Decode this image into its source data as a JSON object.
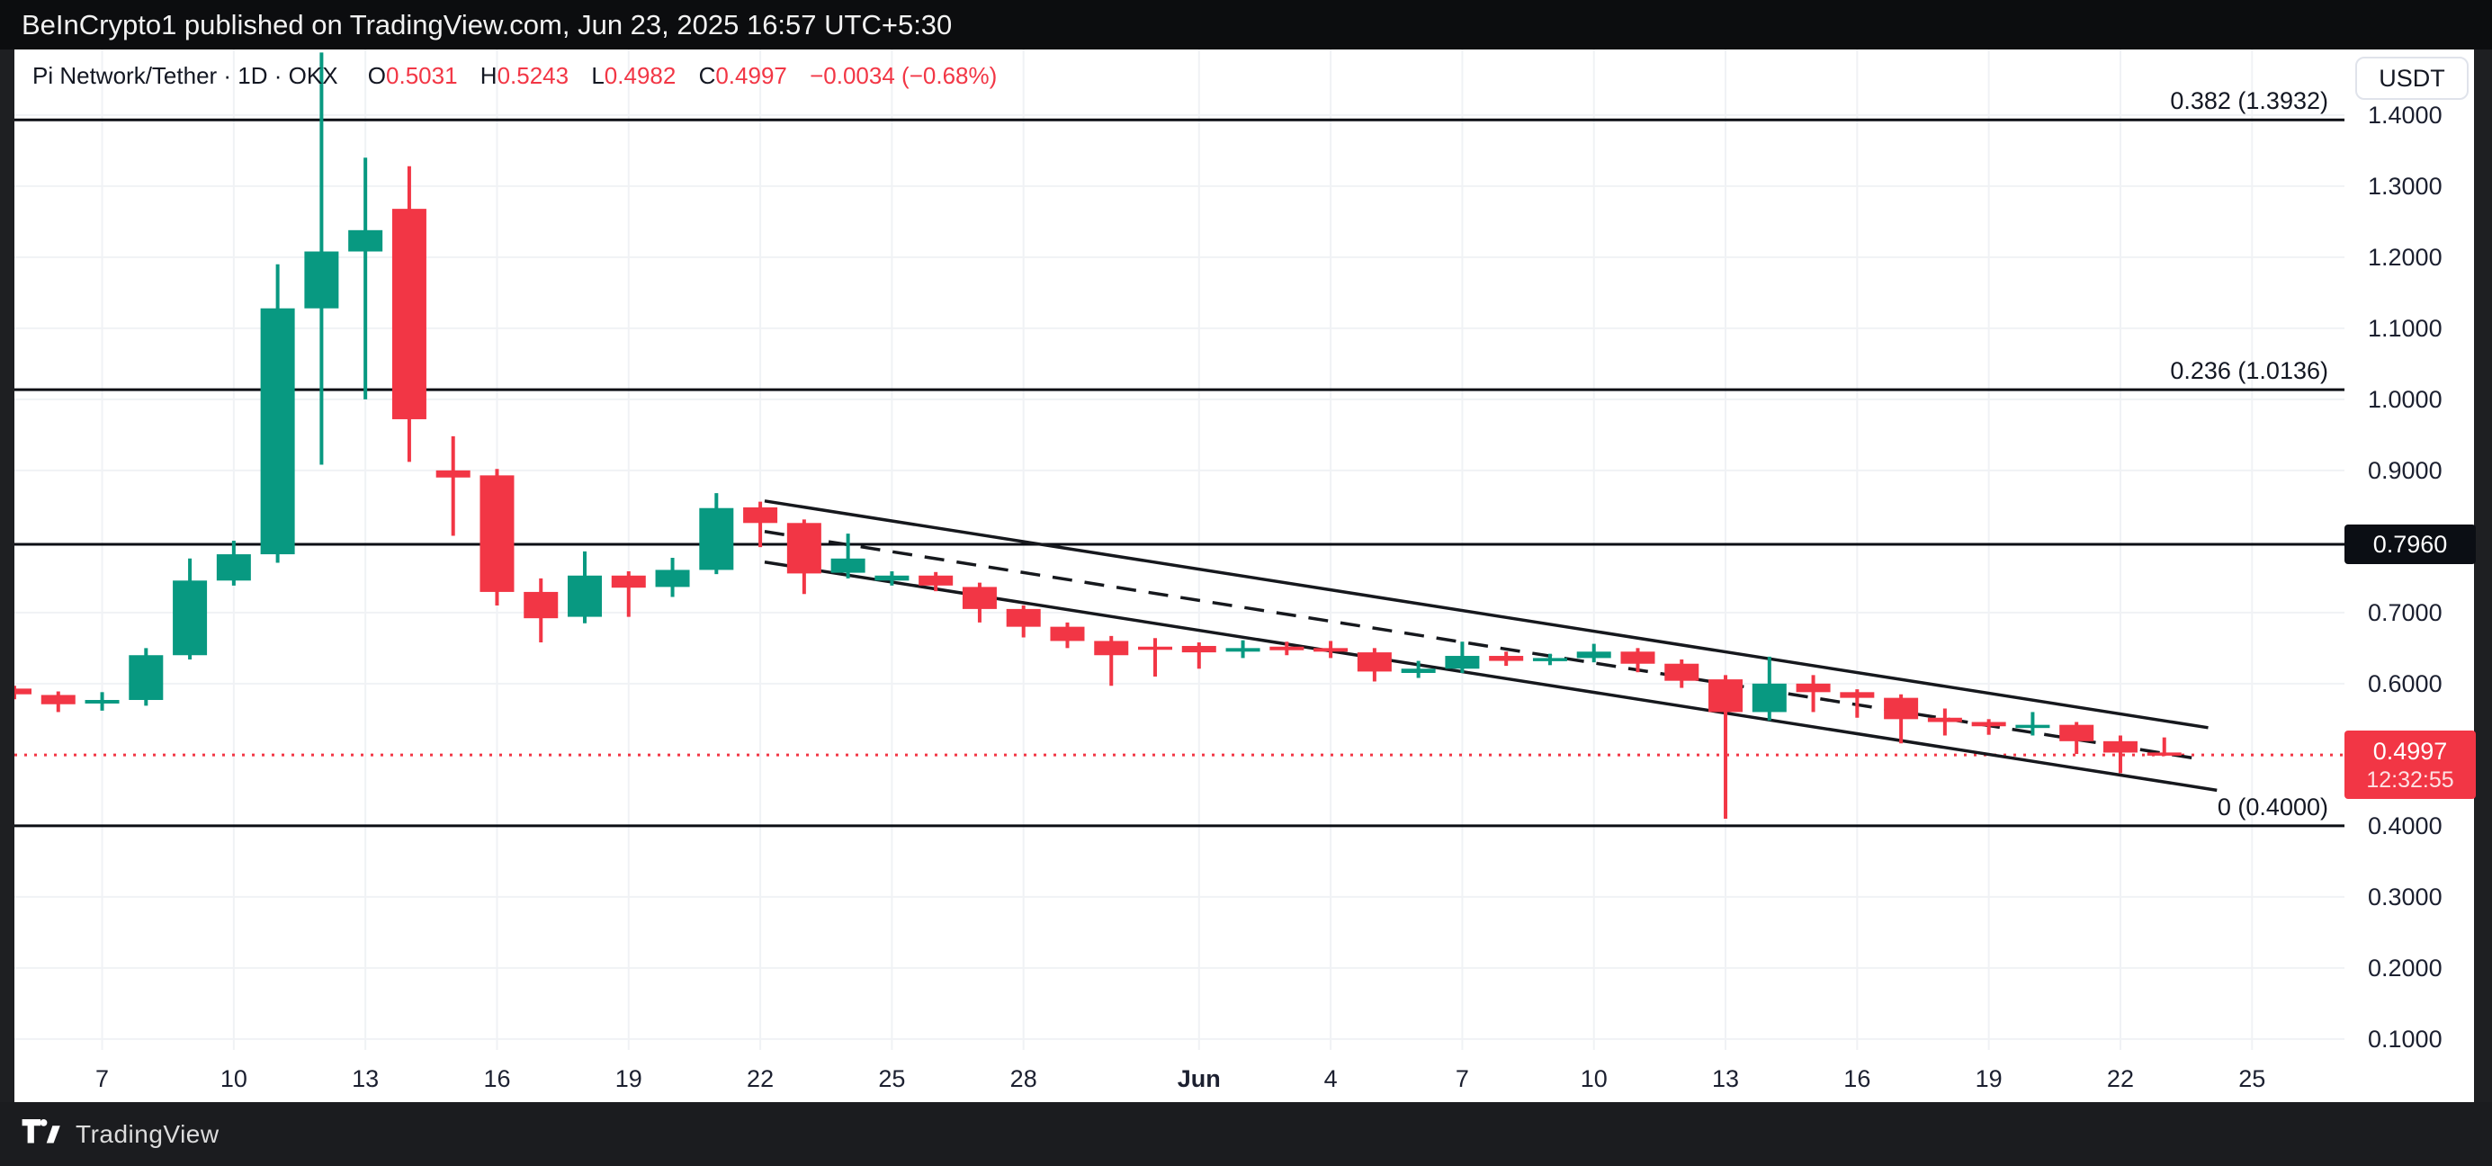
{
  "top_bar": {
    "attribution": "BeInCrypto1 published on TradingView.com, Jun 23, 2025 16:57 UTC+5:30"
  },
  "header": {
    "symbol_line": "Pi Network/Tether · 1D · OKX",
    "o_label": "O",
    "o": "0.5031",
    "h_label": "H",
    "h": "0.5243",
    "l_label": "L",
    "l": "0.4982",
    "c_label": "C",
    "c": "0.4997",
    "change": "−0.0034 (−0.68%)"
  },
  "price_axis": {
    "currency": "USDT",
    "labels": [
      {
        "text": "1.4000",
        "price": 1.4
      },
      {
        "text": "1.3000",
        "price": 1.3
      },
      {
        "text": "1.2000",
        "price": 1.2
      },
      {
        "text": "1.1000",
        "price": 1.1
      },
      {
        "text": "1.0000",
        "price": 1.0
      },
      {
        "text": "0.9000",
        "price": 0.9
      },
      {
        "text": "0.7000",
        "price": 0.7
      },
      {
        "text": "0.6000",
        "price": 0.6
      },
      {
        "text": "0.4000",
        "price": 0.4
      },
      {
        "text": "0.3000",
        "price": 0.3
      },
      {
        "text": "0.2000",
        "price": 0.2
      },
      {
        "text": "0.1000",
        "price": 0.1
      }
    ],
    "level_badge": "0.7960",
    "last_price_badge": {
      "price": "0.4997",
      "countdown": "12:32:55"
    }
  },
  "footer": {
    "brand": "TradingView"
  },
  "chart_data": {
    "type": "candlestick",
    "title": "Pi Network/Tether 1D OKX",
    "ylabel": "Price (USDT)",
    "ylim_visible": [
      0.05,
      1.47
    ],
    "grid": true,
    "x_start_date": "May 5, 2025",
    "x_ticks": [
      {
        "label": "7",
        "day": 2
      },
      {
        "label": "10",
        "day": 5
      },
      {
        "label": "13",
        "day": 8
      },
      {
        "label": "16",
        "day": 11
      },
      {
        "label": "19",
        "day": 14
      },
      {
        "label": "22",
        "day": 17
      },
      {
        "label": "25",
        "day": 20
      },
      {
        "label": "28",
        "day": 23
      },
      {
        "label": "Jun",
        "day": 27,
        "bold": true
      },
      {
        "label": "4",
        "day": 30
      },
      {
        "label": "7",
        "day": 33
      },
      {
        "label": "10",
        "day": 36
      },
      {
        "label": "13",
        "day": 39
      },
      {
        "label": "16",
        "day": 42
      },
      {
        "label": "19",
        "day": 45
      },
      {
        "label": "22",
        "day": 48
      },
      {
        "label": "25",
        "day": 51
      }
    ],
    "candles_ohlc": [
      {
        "date": "May 5",
        "o": 0.593,
        "h": 0.597,
        "l": 0.578,
        "c": 0.585
      },
      {
        "date": "May 6",
        "o": 0.584,
        "h": 0.589,
        "l": 0.56,
        "c": 0.571
      },
      {
        "date": "May 7",
        "o": 0.572,
        "h": 0.588,
        "l": 0.562,
        "c": 0.577
      },
      {
        "date": "May 8",
        "o": 0.577,
        "h": 0.65,
        "l": 0.569,
        "c": 0.64
      },
      {
        "date": "May 9",
        "o": 0.64,
        "h": 0.776,
        "l": 0.634,
        "c": 0.745
      },
      {
        "date": "May 10",
        "o": 0.745,
        "h": 0.801,
        "l": 0.738,
        "c": 0.782
      },
      {
        "date": "May 11",
        "o": 0.782,
        "h": 1.19,
        "l": 0.77,
        "c": 1.128
      },
      {
        "date": "May 12",
        "o": 1.128,
        "h": 1.488,
        "l": 0.908,
        "c": 1.208
      },
      {
        "date": "May 13",
        "o": 1.208,
        "h": 1.34,
        "l": 1.0,
        "c": 1.238
      },
      {
        "date": "May 14",
        "o": 1.268,
        "h": 1.328,
        "l": 0.912,
        "c": 0.972
      },
      {
        "date": "May 15",
        "o": 0.9,
        "h": 0.948,
        "l": 0.808,
        "c": 0.89
      },
      {
        "date": "May 16",
        "o": 0.893,
        "h": 0.902,
        "l": 0.71,
        "c": 0.729
      },
      {
        "date": "May 17",
        "o": 0.729,
        "h": 0.748,
        "l": 0.658,
        "c": 0.692
      },
      {
        "date": "May 18",
        "o": 0.694,
        "h": 0.786,
        "l": 0.685,
        "c": 0.752
      },
      {
        "date": "May 19",
        "o": 0.752,
        "h": 0.758,
        "l": 0.694,
        "c": 0.735
      },
      {
        "date": "May 20",
        "o": 0.736,
        "h": 0.777,
        "l": 0.722,
        "c": 0.76
      },
      {
        "date": "May 21",
        "o": 0.76,
        "h": 0.868,
        "l": 0.754,
        "c": 0.847
      },
      {
        "date": "May 22",
        "o": 0.848,
        "h": 0.856,
        "l": 0.792,
        "c": 0.826
      },
      {
        "date": "May 23",
        "o": 0.826,
        "h": 0.831,
        "l": 0.726,
        "c": 0.755
      },
      {
        "date": "May 24",
        "o": 0.756,
        "h": 0.811,
        "l": 0.748,
        "c": 0.776
      },
      {
        "date": "May 25",
        "o": 0.745,
        "h": 0.758,
        "l": 0.738,
        "c": 0.752
      },
      {
        "date": "May 26",
        "o": 0.752,
        "h": 0.757,
        "l": 0.73,
        "c": 0.738
      },
      {
        "date": "May 27",
        "o": 0.736,
        "h": 0.742,
        "l": 0.686,
        "c": 0.705
      },
      {
        "date": "May 28",
        "o": 0.705,
        "h": 0.71,
        "l": 0.665,
        "c": 0.68
      },
      {
        "date": "May 29",
        "o": 0.68,
        "h": 0.686,
        "l": 0.65,
        "c": 0.66
      },
      {
        "date": "May 30",
        "o": 0.66,
        "h": 0.667,
        "l": 0.597,
        "c": 0.64
      },
      {
        "date": "May 31",
        "o": 0.652,
        "h": 0.664,
        "l": 0.61,
        "c": 0.65
      },
      {
        "date": "Jun 1",
        "o": 0.653,
        "h": 0.658,
        "l": 0.621,
        "c": 0.644
      },
      {
        "date": "Jun 2",
        "o": 0.645,
        "h": 0.661,
        "l": 0.636,
        "c": 0.65
      },
      {
        "date": "Jun 3",
        "o": 0.652,
        "h": 0.659,
        "l": 0.64,
        "c": 0.647
      },
      {
        "date": "Jun 4",
        "o": 0.65,
        "h": 0.66,
        "l": 0.636,
        "c": 0.645
      },
      {
        "date": "Jun 5",
        "o": 0.644,
        "h": 0.65,
        "l": 0.603,
        "c": 0.617
      },
      {
        "date": "Jun 6",
        "o": 0.615,
        "h": 0.632,
        "l": 0.608,
        "c": 0.621
      },
      {
        "date": "Jun 7",
        "o": 0.621,
        "h": 0.659,
        "l": 0.615,
        "c": 0.639
      },
      {
        "date": "Jun 8",
        "o": 0.639,
        "h": 0.645,
        "l": 0.625,
        "c": 0.632
      },
      {
        "date": "Jun 9",
        "o": 0.632,
        "h": 0.642,
        "l": 0.626,
        "c": 0.636
      },
      {
        "date": "Jun 10",
        "o": 0.636,
        "h": 0.656,
        "l": 0.63,
        "c": 0.645
      },
      {
        "date": "Jun 11",
        "o": 0.645,
        "h": 0.65,
        "l": 0.616,
        "c": 0.628
      },
      {
        "date": "Jun 12",
        "o": 0.628,
        "h": 0.634,
        "l": 0.594,
        "c": 0.604
      },
      {
        "date": "Jun 13",
        "o": 0.606,
        "h": 0.612,
        "l": 0.41,
        "c": 0.56
      },
      {
        "date": "Jun 14",
        "o": 0.56,
        "h": 0.638,
        "l": 0.548,
        "c": 0.6
      },
      {
        "date": "Jun 15",
        "o": 0.6,
        "h": 0.612,
        "l": 0.56,
        "c": 0.588
      },
      {
        "date": "Jun 16",
        "o": 0.588,
        "h": 0.592,
        "l": 0.552,
        "c": 0.58
      },
      {
        "date": "Jun 17",
        "o": 0.58,
        "h": 0.585,
        "l": 0.516,
        "c": 0.55
      },
      {
        "date": "Jun 18",
        "o": 0.552,
        "h": 0.565,
        "l": 0.527,
        "c": 0.546
      },
      {
        "date": "Jun 19",
        "o": 0.546,
        "h": 0.55,
        "l": 0.528,
        "c": 0.54
      },
      {
        "date": "Jun 20",
        "o": 0.54,
        "h": 0.56,
        "l": 0.527,
        "c": 0.542
      },
      {
        "date": "Jun 21",
        "o": 0.542,
        "h": 0.546,
        "l": 0.501,
        "c": 0.519
      },
      {
        "date": "Jun 22",
        "o": 0.519,
        "h": 0.527,
        "l": 0.474,
        "c": 0.503
      },
      {
        "date": "Jun 23",
        "o": 0.5031,
        "h": 0.5243,
        "l": 0.4982,
        "c": 0.4997
      }
    ],
    "fib_levels": [
      {
        "label": "0.382 (1.3932)",
        "price": 1.3932
      },
      {
        "label": "0.236 (1.0136)",
        "price": 1.0136
      },
      {
        "label": null,
        "price": 0.796
      },
      {
        "label": "0 (0.4000)",
        "price": 0.4
      }
    ],
    "last_price_line": 0.4997,
    "descending_channel": {
      "upper": {
        "day1": 17.1,
        "price1": 0.857,
        "day2": 50.0,
        "price2": 0.538
      },
      "middle_dashed": {
        "day1": 17.1,
        "price1": 0.814,
        "day2": 49.9,
        "price2": 0.493
      },
      "lower": {
        "day1": 17.1,
        "price1": 0.771,
        "day2": 50.2,
        "price2": 0.45
      }
    },
    "legend_position": "none",
    "colors": {
      "up": "#089981",
      "down": "#f23645",
      "grid": "#f0f2f5",
      "line": "#0b0e14",
      "dotted": "#f23645"
    }
  }
}
